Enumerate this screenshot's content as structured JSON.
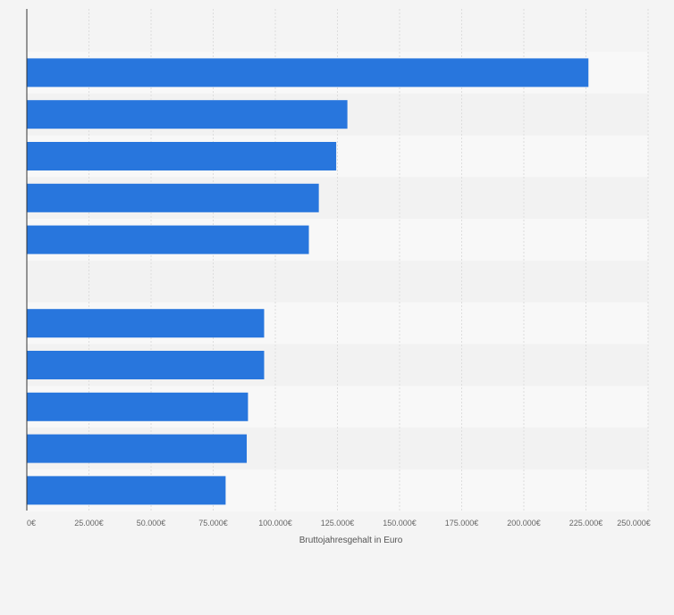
{
  "chart_data": {
    "type": "bar",
    "orientation": "horizontal",
    "categories": [
      "",
      "",
      "",
      "",
      "",
      "",
      "",
      "",
      "",
      "",
      ""
    ],
    "values": [
      226000,
      129000,
      124500,
      117500,
      113500,
      null,
      95500,
      95500,
      89000,
      88500,
      80000
    ],
    "xlabel": "Bruttojahresgehalt in Euro",
    "ylabel": "",
    "xlim": [
      0,
      250000
    ],
    "ticks": [
      0,
      25000,
      50000,
      75000,
      100000,
      125000,
      150000,
      175000,
      200000,
      225000,
      250000
    ],
    "tick_labels": [
      "0€",
      "25.000€",
      "50.000€",
      "75.000€",
      "100.000€",
      "125.000€",
      "150.000€",
      "175.000€",
      "200.000€",
      "225.000€",
      "250.000€"
    ],
    "grid": true,
    "legend": "none"
  },
  "colors": {
    "bar": "#2876dd",
    "background": "#f4f4f4",
    "band_light": "#f8f8f8",
    "band_dark": "#f2f2f2",
    "grid": "#dddddd",
    "axis": "#333333"
  }
}
